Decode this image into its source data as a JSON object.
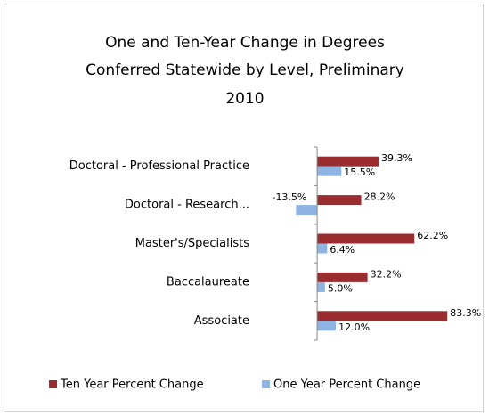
{
  "chart_data": {
    "type": "hbar",
    "title": [
      "One and Ten-Year Change in Degrees",
      "Conferred Statewide by Level, Preliminary",
      "2010"
    ],
    "categories": [
      "Doctoral - Professional Practice",
      "Doctoral - Research...",
      "Master's/Specialists",
      "Baccalaureate",
      "Associate"
    ],
    "series": [
      {
        "name": "Ten Year Percent Change",
        "color": "#9b2d30",
        "values": [
          39.3,
          28.2,
          62.2,
          32.2,
          83.3
        ],
        "value_labels": [
          "39.3%",
          "28.2%",
          "62.2%",
          "32.2%",
          "83.3%"
        ]
      },
      {
        "name": "One Year Percent Change",
        "color": "#8db4e2",
        "values": [
          15.5,
          -13.5,
          6.4,
          5.0,
          12.0
        ],
        "value_labels": [
          "15.5%",
          "-13.5%",
          "6.4%",
          "5.0%",
          "12.0%"
        ]
      }
    ],
    "xlim": [
      -20,
      90
    ],
    "legend": "bottom"
  }
}
